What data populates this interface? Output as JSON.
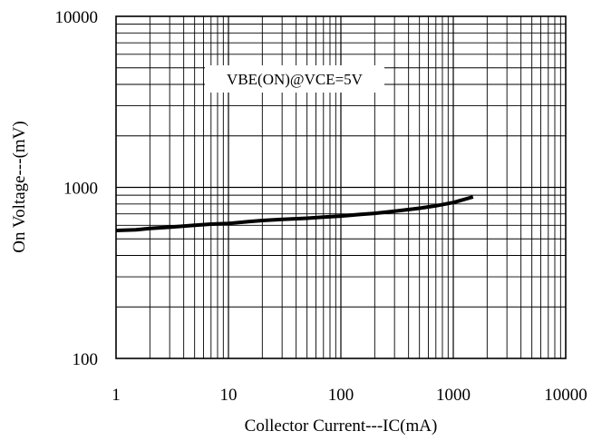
{
  "chart_data": {
    "type": "line",
    "title": "",
    "xlabel": "Collector Current---IC(mA)",
    "ylabel": "On Voltage---(mV)",
    "xscale": "log",
    "yscale": "log",
    "xlim": [
      1,
      10000
    ],
    "ylim": [
      100,
      10000
    ],
    "grid": true,
    "x_ticks": [
      "1",
      "10",
      "100",
      "1000",
      "10000"
    ],
    "y_ticks": [
      "100",
      "1000",
      "10000"
    ],
    "annotation": "VBE(ON)@VCE=5V",
    "line_color": "#000000",
    "series": [
      {
        "name": "",
        "x": [
          1,
          1.5,
          2,
          3,
          5,
          7,
          10,
          15,
          20,
          30,
          50,
          70,
          100,
          150,
          200,
          300,
          500,
          700,
          1000,
          1500
        ],
        "y": [
          560,
          565,
          575,
          585,
          600,
          610,
          615,
          630,
          640,
          650,
          660,
          670,
          680,
          695,
          705,
          725,
          755,
          780,
          815,
          880
        ]
      }
    ]
  }
}
